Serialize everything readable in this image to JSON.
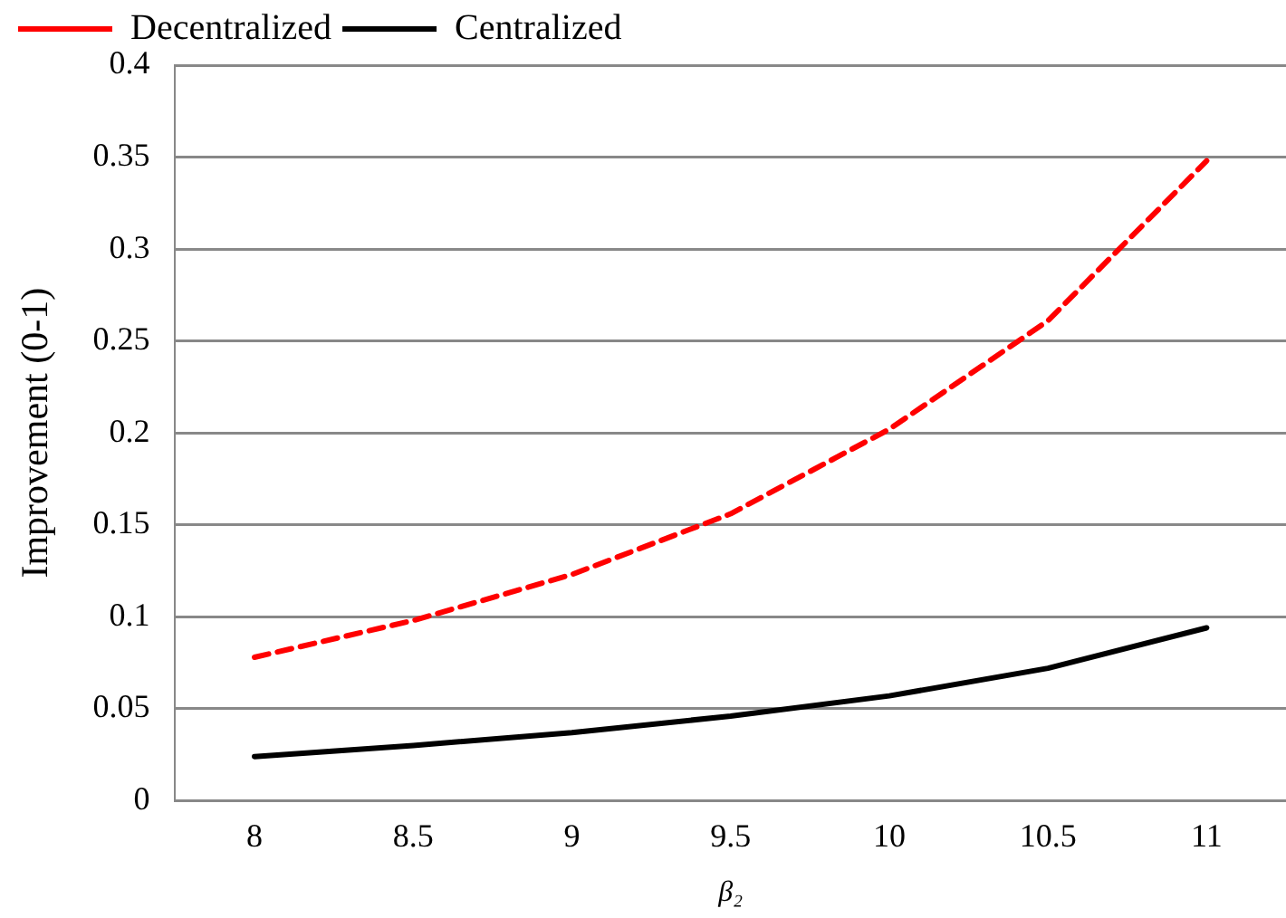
{
  "chart_data": {
    "type": "line",
    "xlabel": "β₂",
    "ylabel": "Improvement (0-1)",
    "categories": [
      "8",
      "8.5",
      "9",
      "9.5",
      "10",
      "10.5",
      "11"
    ],
    "series": [
      {
        "name": "Decentralized",
        "color": "#ff0000",
        "line_style": "dashed",
        "values": [
          0.078,
          0.098,
          0.123,
          0.156,
          0.202,
          0.261,
          0.348
        ]
      },
      {
        "name": "Centralized",
        "color": "#000000",
        "line_style": "solid",
        "values": [
          0.024,
          0.03,
          0.037,
          0.046,
          0.057,
          0.072,
          0.094
        ]
      }
    ],
    "ylim": [
      0,
      0.4
    ],
    "yticks": [
      0,
      0.05,
      0.1,
      0.15,
      0.2,
      0.25,
      0.3,
      0.35,
      0.4
    ],
    "grid": "y",
    "legend": "top left",
    "marker": "none"
  }
}
